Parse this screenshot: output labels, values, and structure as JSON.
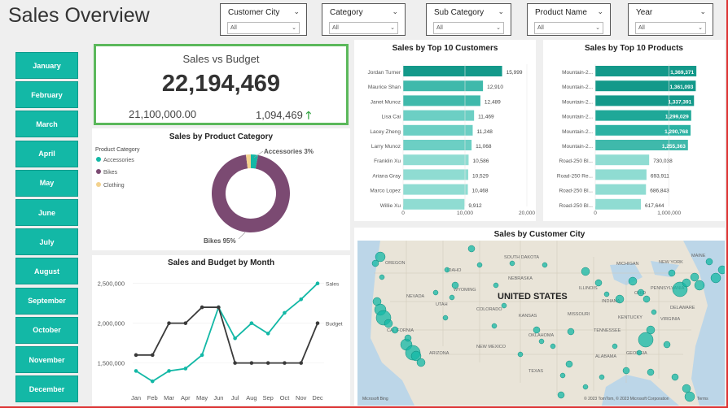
{
  "title": "Sales Overview",
  "slicers": [
    {
      "label": "Customer City",
      "value": "All"
    },
    {
      "label": "Category",
      "value": "All"
    },
    {
      "label": "Sub Category",
      "value": "All"
    },
    {
      "label": "Product Name",
      "value": "All"
    },
    {
      "label": "Year",
      "value": "All"
    }
  ],
  "months": [
    "January",
    "February",
    "March",
    "April",
    "May",
    "June",
    "July",
    "August",
    "September",
    "October",
    "November",
    "December"
  ],
  "kpi": {
    "title": "Sales vs Budget",
    "value": "22,194,469",
    "budget": "21,100,000.00",
    "delta": "1,094,469",
    "arrow": "🡑"
  },
  "category_chart": {
    "title": "Sales by Product Category",
    "legend_title": "Product Category",
    "legend": [
      "Accessories",
      "Bikes",
      "Clothing"
    ],
    "label_accessories": "Accessories 3%",
    "label_bikes": "Bikes 95%"
  },
  "colors": {
    "accent": "#13b8a6",
    "bikes": "#7b4a72",
    "clothing": "#f3d28e",
    "budget": "#3a3a3a",
    "kpi_border": "#5bb85b"
  },
  "customers_chart": {
    "title": "Sales by Top 10 Customers",
    "ticks": [
      "0",
      "10,000",
      "20,000"
    ]
  },
  "products_chart": {
    "title": "Sales by Top 10 Products",
    "ticks": [
      "0",
      "1,000,000"
    ]
  },
  "line_chart": {
    "title": "Sales and Budget by Month",
    "yticks": [
      "2,500,000",
      "2,000,000",
      "1,500,000"
    ],
    "months": [
      "Jan",
      "Feb",
      "Mar",
      "Apr",
      "May",
      "Jun",
      "Jul",
      "Aug",
      "Sep",
      "Oct",
      "Nov",
      "Dec"
    ],
    "sales_label": "Sales",
    "budget_label": "Budget"
  },
  "map_chart": {
    "title": "Sales by Customer City",
    "country": "UNITED STATES",
    "states": [
      "OREGON",
      "IDAHO",
      "WYOMING",
      "SOUTH DAKOTA",
      "NEBRASKA",
      "NEVADA",
      "UTAH",
      "COLORADO",
      "KANSAS",
      "MISSOURI",
      "CALIFORNIA",
      "ARIZONA",
      "NEW MEXICO",
      "OKLAHOMA",
      "TENNESSEE",
      "TEXAS",
      "ALABAMA",
      "GEORGIA",
      "ILLINOIS",
      "INDIANA",
      "OHIO",
      "KENTUCKY",
      "VIRGINIA",
      "MICHIGAN",
      "NEW YORK",
      "PENNSYLVANIA",
      "DELAWARE",
      "MAINE"
    ],
    "copyright": "© 2023 TomTom, © 2023 Microsoft Corporation",
    "terms": "Terms",
    "brand": "Microsoft Bing"
  },
  "chart_data": [
    {
      "type": "pie",
      "title": "Sales by Product Category",
      "categories": [
        "Accessories",
        "Bikes",
        "Clothing"
      ],
      "values": [
        3,
        95,
        2
      ]
    },
    {
      "type": "bar",
      "title": "Sales by Top 10 Customers",
      "categories": [
        "Jordan Turner",
        "Maurice Shan",
        "Janet Munoz",
        "Lisa Cai",
        "Lacey Zheng",
        "Larry Munoz",
        "Franklin Xu",
        "Ariana Gray",
        "Marco Lopez",
        "Willie Xu"
      ],
      "values": [
        15999,
        12910,
        12489,
        11469,
        11248,
        11068,
        10586,
        10529,
        10468,
        9912
      ],
      "labels": [
        "15,999",
        "12,910",
        "12,489",
        "11,469",
        "11,248",
        "11,068",
        "10,586",
        "10,529",
        "10,468",
        "9,912"
      ],
      "xlim": [
        0,
        20000
      ]
    },
    {
      "type": "bar",
      "title": "Sales by Top 10 Products",
      "categories": [
        "Mountain-2...",
        "Mountain-2...",
        "Mountain-2...",
        "Mountain-2...",
        "Mountain-2...",
        "Mountain-2...",
        "Road-250 Bl...",
        "Road-250 Re...",
        "Road-250 Bl...",
        "Road-250 Bl..."
      ],
      "values": [
        1369371,
        1361093,
        1337391,
        1299029,
        1290768,
        1255363,
        730038,
        693911,
        686843,
        617644
      ],
      "labels": [
        "1,369,371",
        "1,361,093",
        "1,337,391",
        "1,299,029",
        "1,290,768",
        "1,255,363",
        "730,038",
        "693,911",
        "686,843",
        "617,644"
      ],
      "xlim": [
        0,
        1500000
      ]
    },
    {
      "type": "line",
      "title": "Sales and Budget by Month",
      "categories": [
        "Jan",
        "Feb",
        "Mar",
        "Apr",
        "May",
        "Jun",
        "Jul",
        "Aug",
        "Sep",
        "Oct",
        "Nov",
        "Dec"
      ],
      "series": [
        {
          "name": "Sales",
          "values": [
            1400000,
            1270000,
            1400000,
            1430000,
            1600000,
            2200000,
            1810000,
            2000000,
            1870000,
            2130000,
            2300000,
            2500000
          ]
        },
        {
          "name": "Budget",
          "values": [
            1600000,
            1600000,
            2000000,
            2000000,
            2200000,
            2200000,
            1500000,
            1500000,
            1500000,
            1500000,
            1500000,
            2000000
          ]
        }
      ],
      "ylim": [
        1200000,
        2650000
      ]
    }
  ]
}
